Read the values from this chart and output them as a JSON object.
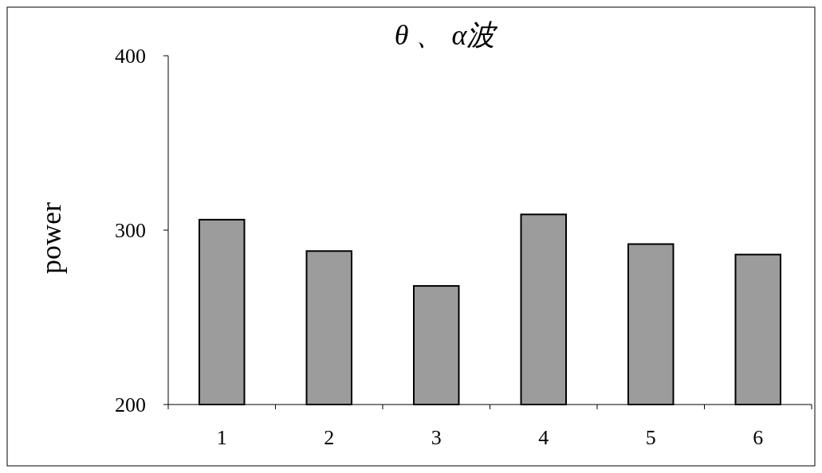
{
  "chart_data": {
    "type": "bar",
    "title": "θ 、 α波",
    "ylabel": "power",
    "categories": [
      "1",
      "2",
      "3",
      "4",
      "5",
      "6"
    ],
    "values": [
      306,
      288,
      268,
      309,
      292,
      286
    ],
    "color": "#9c9c9c",
    "ylim": [
      200,
      400
    ],
    "yticks": [
      200,
      300,
      400
    ],
    "grid": false
  }
}
